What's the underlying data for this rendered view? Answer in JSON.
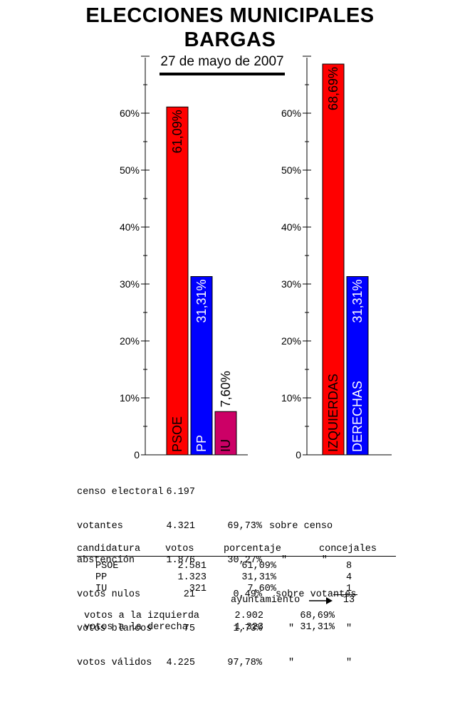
{
  "header": {
    "title_line1": "ELECCIONES  MUNICIPALES",
    "title_line2": "BARGAS",
    "date": "27 de mayo de 2007"
  },
  "colors": {
    "psoe": "#ff0000",
    "pp": "#0000ff",
    "iu": "#cc0066",
    "izquierdas": "#ff0000",
    "derechas": "#0000ff"
  },
  "chart_data": [
    {
      "type": "bar",
      "categories": [
        "PSOE",
        "PP",
        "IU"
      ],
      "values": [
        61.09,
        31.31,
        7.6
      ],
      "value_labels": [
        "61,09%",
        "31,31%",
        "7,60%"
      ],
      "colors": [
        "#ff0000",
        "#0000ff",
        "#cc0066"
      ],
      "ylim": [
        0,
        65
      ],
      "yticks": [
        "0",
        "10%",
        "20%",
        "30%",
        "40%",
        "50%",
        "60%"
      ],
      "grid": false
    },
    {
      "type": "bar",
      "categories": [
        "IZQUIERDAS",
        "DERECHAS"
      ],
      "values": [
        68.69,
        31.31
      ],
      "value_labels": [
        "68,69%",
        "31,31%"
      ],
      "colors": [
        "#ff0000",
        "#0000ff"
      ],
      "ylim": [
        0,
        65
      ],
      "yticks": [
        "0",
        "10%",
        "20%",
        "30%",
        "40%",
        "50%",
        "60%"
      ],
      "grid": false
    }
  ],
  "stats": [
    {
      "label": "censo electoral",
      "value": "6.197",
      "pct": "",
      "note": ""
    },
    {
      "label": "votantes",
      "value": "4.321",
      "pct": "69,73%",
      "note": "sobre censo"
    },
    {
      "label": "abstención",
      "value": "1.876",
      "pct": "30,27%",
      "note": "\"      \""
    },
    {
      "label": "votos nulos",
      "value": "21",
      "pct": "0,49%",
      "note": "sobre votantes"
    },
    {
      "label": "votos blancos",
      "value": "75",
      "pct": "1,73%",
      "note": "\"         \""
    },
    {
      "label": "votos válidos",
      "value": "4.225",
      "pct": "97,78%",
      "note": "\"         \""
    }
  ],
  "candidaturas": {
    "headers": [
      "candidatura",
      "votos",
      "porcentaje",
      "concejales"
    ],
    "rows": [
      {
        "name": "PSOE",
        "votos": "2.581",
        "pct": "61,09%",
        "concejales": "8"
      },
      {
        "name": "PP",
        "votos": "1.323",
        "pct": "31,31%",
        "concejales": "4"
      },
      {
        "name": "IU",
        "votos": "321",
        "pct": "7,60%",
        "concejales": "1"
      }
    ],
    "ayuntamiento_label": "ayuntamiento",
    "ayuntamiento_total": "13"
  },
  "bloques": [
    {
      "label": "votos a la izquierda",
      "votos": "2.902",
      "pct": "68,69%"
    },
    {
      "label": "votos a la derecha",
      "votos": "1.323",
      "pct": "31,31%"
    }
  ]
}
